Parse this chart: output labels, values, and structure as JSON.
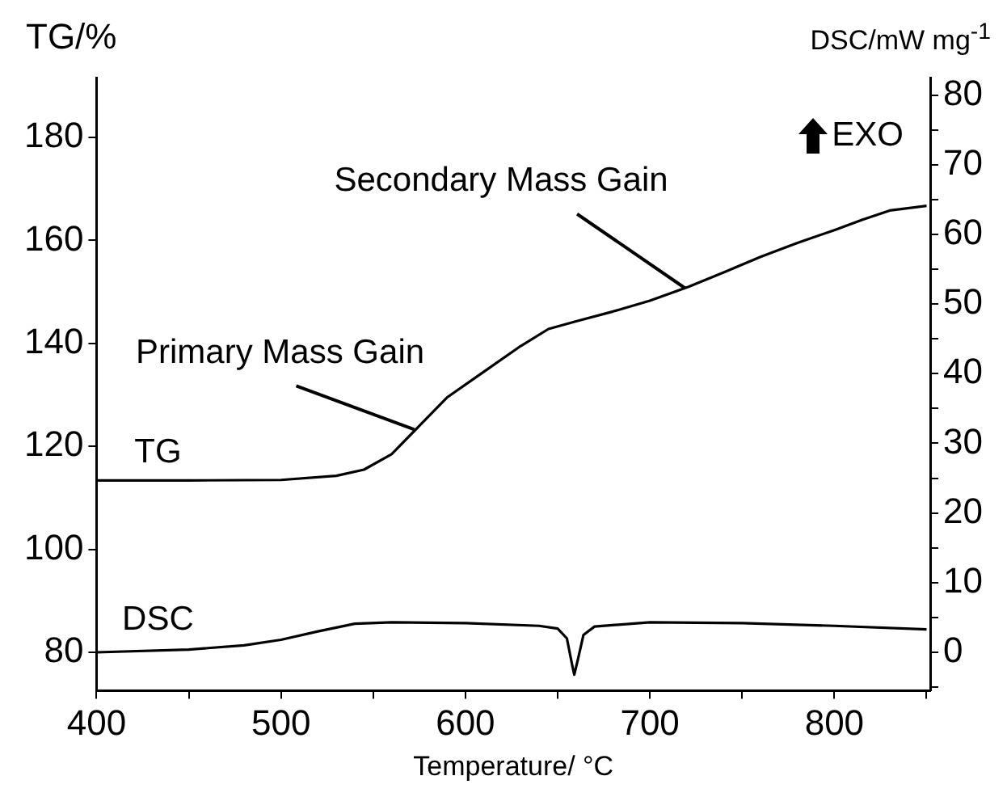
{
  "chart_data": {
    "type": "line",
    "xlabel": "Temperature/ °C",
    "ylabel": "TG/%",
    "y2label": "DSC/mW mg$^{-1}$",
    "xlim": [
      400,
      852
    ],
    "xticks": [
      400,
      {
        "value": 450,
        "label": null
      },
      500,
      {
        "value": 550,
        "label": null
      },
      600,
      {
        "value": 650,
        "label": null
      },
      700,
      {
        "value": 750,
        "label": null
      },
      800,
      {
        "value": 850,
        "label": null
      }
    ],
    "ylim": [
      72.6,
      191.6
    ],
    "yticks": [
      80,
      100,
      120,
      140,
      160,
      180
    ],
    "y2lim": [
      -5.5,
      82.5
    ],
    "y2ticks": [
      {
        "value": -5,
        "label": null
      },
      0,
      {
        "value": 5,
        "label": null
      },
      10,
      {
        "value": 15,
        "label": null
      },
      20,
      {
        "value": 25,
        "label": null
      },
      30,
      {
        "value": 35,
        "label": null
      },
      40,
      {
        "value": 45,
        "label": null
      },
      50,
      {
        "value": 55,
        "label": null
      },
      60,
      {
        "value": 65,
        "label": null
      },
      70,
      {
        "value": 75,
        "label": null
      },
      80
    ],
    "series": [
      {
        "name": "TG",
        "color": "#000000",
        "x": [
          400,
          450,
          500,
          530,
          545,
          560,
          575,
          590,
          610,
          630,
          645,
          660,
          680,
          700,
          721,
          740,
          760,
          780,
          800,
          815,
          830,
          850
        ],
        "values": [
          113.4,
          113.4,
          113.5,
          114.3,
          115.5,
          118.5,
          124,
          129.5,
          134.5,
          139.5,
          142.8,
          144.3,
          146.2,
          148.3,
          151,
          153.8,
          156.8,
          159.5,
          162,
          164,
          165.8,
          166.7
        ]
      },
      {
        "name": "DSC",
        "color": "#000000",
        "axis": "y2",
        "x": [
          400,
          450,
          480,
          500,
          520,
          540,
          560,
          600,
          640,
          650,
          655,
          658,
          659,
          661,
          664,
          670,
          700,
          750,
          800,
          850
        ],
        "values": [
          0,
          0.4,
          1.0,
          1.8,
          3.0,
          4.1,
          4.3,
          4.2,
          3.8,
          3.4,
          2.0,
          -2,
          -3.2,
          -1,
          2.5,
          3.7,
          4.3,
          4.2,
          3.8,
          3.3
        ]
      }
    ],
    "annotations": [
      {
        "text": "Primary Mass Gain",
        "x": 574,
        "y": 123.6
      },
      {
        "text": "Secondary Mass Gain",
        "x": 721,
        "y": 151
      },
      "EXO"
    ],
    "legend": false,
    "grid": false,
    "marker": "none",
    "line_style": "solid"
  }
}
